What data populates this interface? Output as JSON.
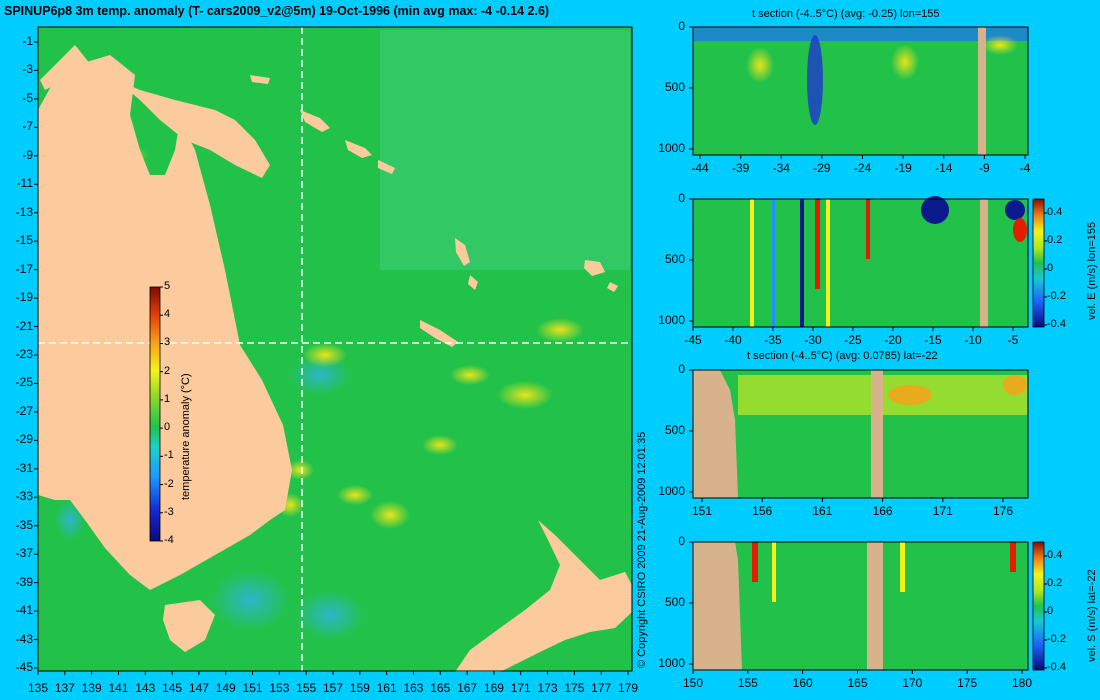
{
  "header": {
    "title": "SPINUP6p8 3m temp. anomaly (T- cars2009_v2@5m) 19-Oct-1996 (min avg max: -4 -0.14 2.6)"
  },
  "copyright": "© Copyright CSIRO 2009   21-Aug-2009 12:01:35",
  "colors": {
    "background": "#00cdff",
    "ocean": "#22c24a",
    "land": "#fccb9d",
    "section_land": "#d7b28b",
    "warm": "#f3f31a",
    "hot": "#e21d00",
    "cool": "#1e90ff",
    "cold": "#0a1a8c"
  },
  "chart_data": [
    {
      "type": "heatmap",
      "name": "map",
      "x_ticks": [
        "135",
        "137",
        "139",
        "141",
        "143",
        "145",
        "147",
        "149",
        "151",
        "153",
        "155",
        "157",
        "159",
        "161",
        "163",
        "165",
        "167",
        "169",
        "171",
        "173",
        "175",
        "177",
        "179"
      ],
      "y_ticks": [
        "-1",
        "-3",
        "-5",
        "-7",
        "-9",
        "-11",
        "-13",
        "-15",
        "-17",
        "-19",
        "-21",
        "-23",
        "-25",
        "-27",
        "-29",
        "-31",
        "-33",
        "-35",
        "-37",
        "-39",
        "-41",
        "-43",
        "-45"
      ],
      "xlim": [
        135,
        180
      ],
      "ylim": [
        -45,
        0
      ],
      "crosshair": {
        "lon": 155,
        "lat": -22
      },
      "colorbar": {
        "label": "temperature anomaly (°C)",
        "ticks": [
          "5",
          "4",
          "3",
          "2",
          "1",
          "0",
          "-1",
          "-2",
          "-3",
          "-4"
        ],
        "range": [
          -4,
          5
        ]
      }
    },
    {
      "type": "heatmap",
      "name": "t-section-lon",
      "title": "t section (-4..5°C) (avg: -0.25) lon=155",
      "x_ticks": [
        "-44",
        "-39",
        "-34",
        "-29",
        "-24",
        "-19",
        "-14",
        "-9",
        "-4"
      ],
      "y_ticks": [
        "0",
        "500",
        "1000"
      ],
      "xlim": [
        -45,
        -1
      ],
      "ylim": [
        1050,
        0
      ]
    },
    {
      "type": "heatmap",
      "name": "vel-e-section",
      "x_ticks": [
        "-45",
        "-40",
        "-35",
        "-30",
        "-25",
        "-20",
        "-15",
        "-10",
        "-5"
      ],
      "y_ticks": [
        "0",
        "500",
        "1000"
      ],
      "colorbar": {
        "label": "vel. E (m/s) lon=155",
        "ticks": [
          "0.4",
          "0.2",
          "0",
          "-0.2",
          "-0.4"
        ],
        "range": [
          -0.45,
          0.45
        ]
      }
    },
    {
      "type": "heatmap",
      "name": "t-section-lat",
      "title": "t section (-4..5°C) (avg: 0.0785) lat=-22",
      "x_ticks": [
        "151",
        "156",
        "161",
        "166",
        "171",
        "176"
      ],
      "y_ticks": [
        "0",
        "500",
        "1000"
      ],
      "xlim": [
        150,
        180
      ],
      "ylim": [
        1050,
        0
      ]
    },
    {
      "type": "heatmap",
      "name": "vel-s-section",
      "x_ticks": [
        "150",
        "155",
        "160",
        "165",
        "170",
        "175",
        "180"
      ],
      "y_ticks": [
        "0",
        "500",
        "1000"
      ],
      "colorbar": {
        "label": "vel. S (m/s) lat=-22",
        "ticks": [
          "0.4",
          "0.2",
          "0",
          "-0.2",
          "-0.4"
        ],
        "range": [
          -0.45,
          0.45
        ]
      }
    }
  ]
}
